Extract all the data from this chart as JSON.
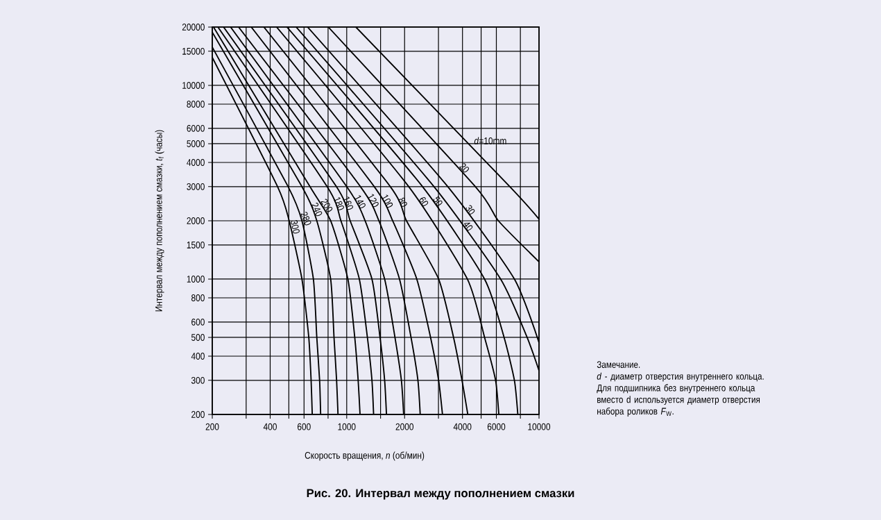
{
  "chart_data": {
    "type": "line",
    "title": "Рис. 20. Интервал между пополнением смазки",
    "xlabel": "Скорость вращения, *n* (об/мин)",
    "ylabel": "Интервал между пополнением смазки, *t*$_{f}$ (часы)",
    "log": "xy",
    "grid": true,
    "xlim": [
      200,
      10000
    ],
    "ylim": [
      200,
      20000
    ],
    "xticks": [
      200,
      {
        "value": 300,
        "label": null
      },
      400,
      {
        "value": 500,
        "label": null
      },
      600,
      {
        "value": 800,
        "label": null
      },
      1000,
      {
        "value": 1500,
        "label": null
      },
      2000,
      {
        "value": 3000,
        "label": null
      },
      4000,
      {
        "value": 5000,
        "label": null
      },
      6000,
      {
        "value": 8000,
        "label": null
      },
      10000
    ],
    "yticks": [
      200,
      300,
      400,
      500,
      600,
      800,
      1000,
      1500,
      2000,
      3000,
      4000,
      5000,
      6000,
      8000,
      10000,
      15000,
      20000
    ],
    "series": [
      {
        "name": "*d*=10mm",
        "color": "#000000",
        "x": [
          1116,
          7052,
          10000
        ],
        "values": [
          20000,
          3000,
          2040
        ]
      },
      {
        "name": "20",
        "color": "#000000",
        "x": [
          802,
          4667,
          6146,
          10000
        ],
        "values": [
          20000,
          3000,
          2000,
          1228
        ]
      },
      {
        "name": "30",
        "color": "#000000",
        "x": [
          626,
          3355,
          7450,
          10000
        ],
        "values": [
          20000,
          3000,
          1000,
          470
        ]
      },
      {
        "name": "40",
        "color": "#000000",
        "x": [
          546,
          2844,
          6316,
          8670,
          10000
        ],
        "values": [
          20000,
          3000,
          1000,
          500,
          337
        ]
      },
      {
        "name": "50",
        "color": "#000000",
        "x": [
          489,
          2480,
          5210,
          6582,
          7450,
          7760
        ],
        "values": [
          20000,
          3000,
          1000,
          500,
          300,
          200
        ]
      },
      {
        "name": "60",
        "color": "#000000",
        "x": [
          432,
          2102,
          4240,
          5210,
          5945,
          6180
        ],
        "values": [
          20000,
          3000,
          1000,
          500,
          300,
          200
        ]
      },
      {
        "name": "80",
        "color": "#000000",
        "x": [
          371,
          1686,
          2045,
          3006,
          3594,
          3978,
          4263
        ],
        "values": [
          20000,
          3000,
          2000,
          1000,
          500,
          300,
          200
        ]
      },
      {
        "name": "100",
        "color": "#000000",
        "x": [
          319,
          1391,
          1733,
          2314,
          2729,
          3006,
          3148
        ],
        "values": [
          20000,
          3000,
          2000,
          1000,
          500,
          300,
          200
        ]
      },
      {
        "name": "120",
        "color": "#000000",
        "x": [
          274,
          1179,
          1470,
          1882,
          2160,
          2346,
          2411
        ],
        "values": [
          20000,
          3000,
          2000,
          1000,
          500,
          300,
          200
        ]
      },
      {
        "name": "140",
        "color": "#000000",
        "x": [
          249,
          1000,
          1246,
          1575,
          1782,
          1925,
          1978
        ],
        "values": [
          20000,
          3000,
          2000,
          1000,
          500,
          300,
          200
        ]
      },
      {
        "name": "160",
        "color": "#000000",
        "x": [
          229,
          884,
          1042,
          1353,
          1490,
          1575,
          1610
        ],
        "values": [
          20000,
          3000,
          2000,
          1000,
          500,
          300,
          200
        ]
      },
      {
        "name": "180",
        "color": "#000000",
        "x": [
          214,
          791,
          933,
          1163,
          1281,
          1353,
          1380
        ],
        "values": [
          20000,
          3000,
          2000,
          1000,
          500,
          300,
          200
        ]
      },
      {
        "name": "200",
        "color": "#000000",
        "x": [
          203,
          644,
          825,
          1014,
          1101,
          1147,
          1173
        ],
        "values": [
          20000,
          3000,
          2000,
          1000,
          500,
          300,
          200
        ]
      },
      {
        "name": "240",
        "color": "#000000",
        "x": [
          200,
          585,
          699,
          825,
          859,
          886,
          901
        ],
        "values": [
          18800,
          3000,
          2000,
          1000,
          500,
          300,
          200
        ]
      },
      {
        "name": "280",
        "color": "#000000",
        "x": [
          200,
          496,
          585,
          671,
          699,
          723,
          732
        ],
        "values": [
          15750,
          3000,
          2000,
          1000,
          500,
          300,
          200
        ]
      },
      {
        "name": "300",
        "color": "#000000",
        "x": [
          200,
          437,
          502,
          585,
          635,
          653,
          662
        ],
        "values": [
          13930,
          3000,
          2000,
          1000,
          500,
          300,
          200
        ]
      }
    ],
    "annotations": [
      "Замечание.",
      "*d* - диаметр отверстия внутреннего кольца.",
      "Для подшипника без внутреннего кольца вместо d используется диаметр отверстия набора роликов *F*$_{W}$."
    ]
  }
}
